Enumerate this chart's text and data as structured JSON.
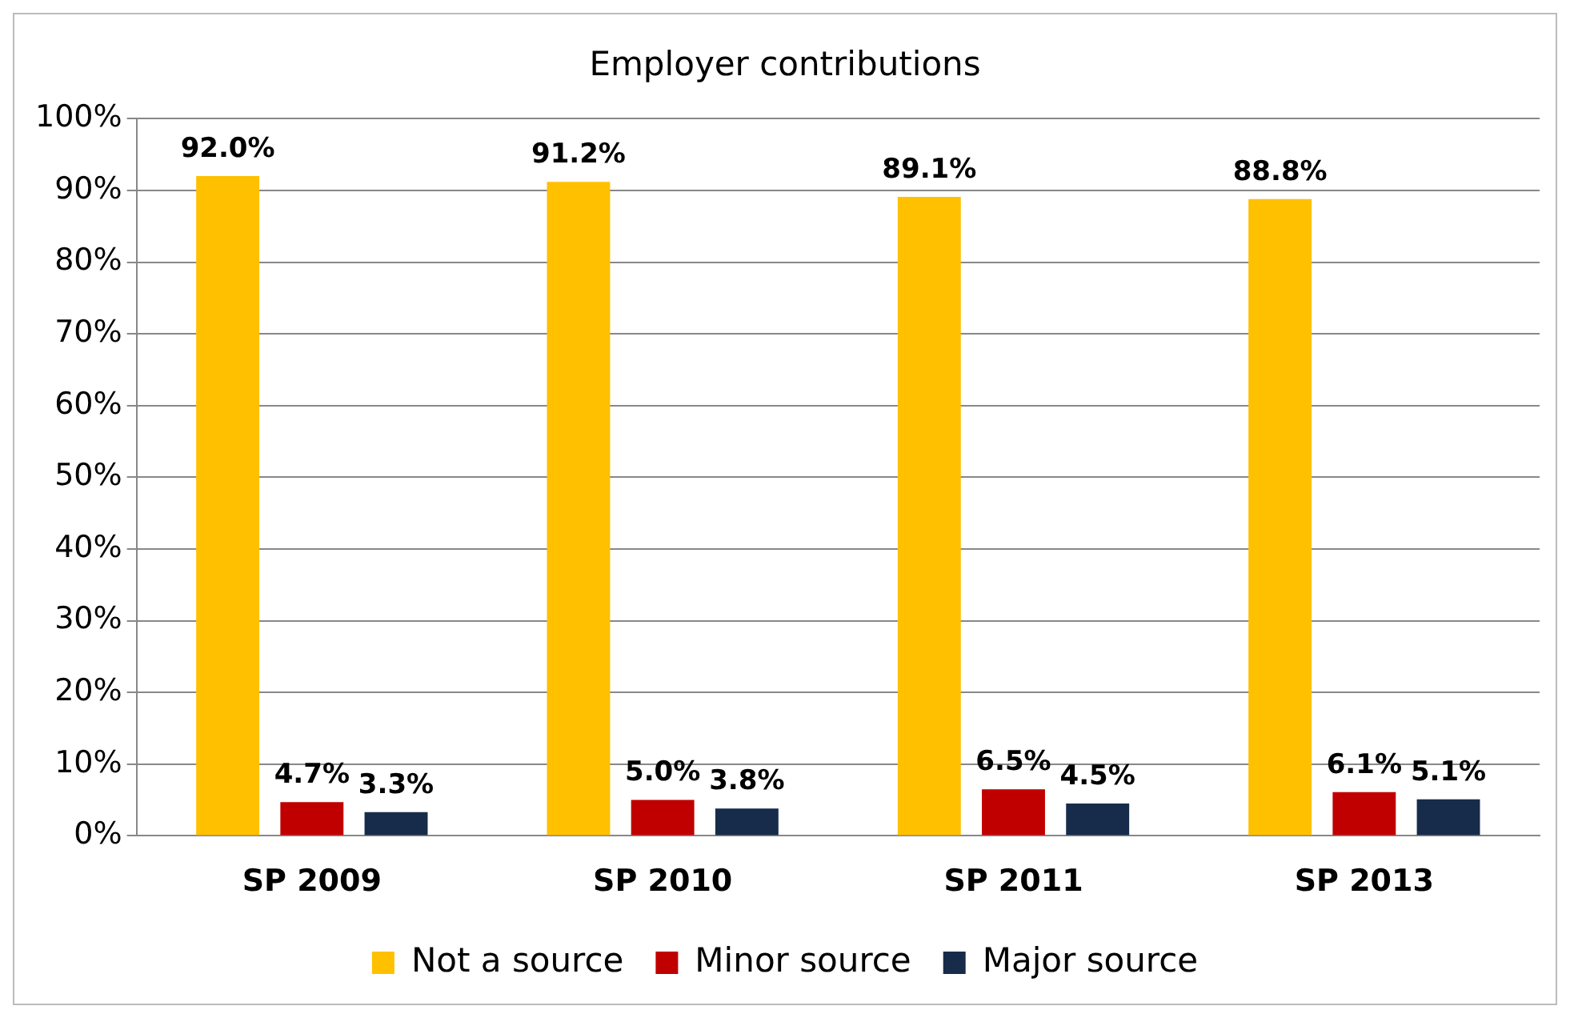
{
  "chart_data": {
    "type": "bar",
    "title": "Employer contributions",
    "categories": [
      "SP 2009",
      "SP 2010",
      "SP 2011",
      "SP 2013"
    ],
    "series": [
      {
        "name": "Not a source",
        "color": "#ffc000",
        "values": [
          92.0,
          91.2,
          89.1,
          88.8
        ],
        "value_labels": [
          "92.0%",
          "91.2%",
          "89.1%",
          "88.8%"
        ]
      },
      {
        "name": "Minor source",
        "color": "#c00000",
        "values": [
          4.7,
          5.0,
          6.5,
          6.1
        ],
        "value_labels": [
          "4.7%",
          "5.0%",
          "6.5%",
          "6.1%"
        ]
      },
      {
        "name": "Major source",
        "color": "#172c4a",
        "values": [
          3.3,
          3.8,
          4.5,
          5.1
        ],
        "value_labels": [
          "3.3%",
          "3.8%",
          "4.5%",
          "5.1%"
        ]
      }
    ],
    "ylim": [
      0,
      100
    ],
    "yticks": [
      {
        "value": 0,
        "label": "0%"
      },
      {
        "value": 10,
        "label": "10%"
      },
      {
        "value": 20,
        "label": "20%"
      },
      {
        "value": 30,
        "label": "30%"
      },
      {
        "value": 40,
        "label": "40%"
      },
      {
        "value": 50,
        "label": "50%"
      },
      {
        "value": 60,
        "label": "60%"
      },
      {
        "value": 70,
        "label": "70%"
      },
      {
        "value": 80,
        "label": "80%"
      },
      {
        "value": 90,
        "label": "90%"
      },
      {
        "value": 100,
        "label": "100%"
      }
    ],
    "grid": "y",
    "legend": "bottom"
  }
}
